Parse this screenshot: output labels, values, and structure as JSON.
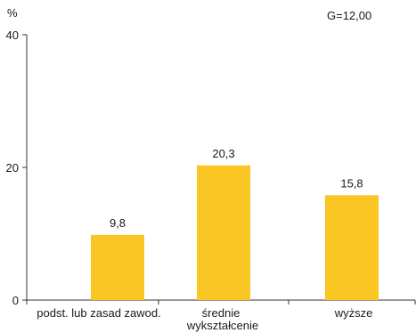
{
  "chart_data": {
    "type": "bar",
    "title": "",
    "ylabel": "%",
    "xlabel": "wykształcenie",
    "annotation": "G=12,00",
    "categories": [
      "podst. lub zasad zawod.",
      "średnie",
      "wyższe"
    ],
    "values": [
      9.8,
      20.3,
      15.8
    ],
    "value_labels": [
      "9,8",
      "20,3",
      "15,8"
    ],
    "ylim": [
      0,
      40
    ],
    "yticks": [
      0,
      20,
      40
    ],
    "ytick_labels": [
      "0",
      "20",
      "40"
    ],
    "grid": false,
    "legend": "none",
    "colors": {
      "bar": "#F9C623",
      "axis": "#333333",
      "text": "#1a1a1a"
    }
  }
}
